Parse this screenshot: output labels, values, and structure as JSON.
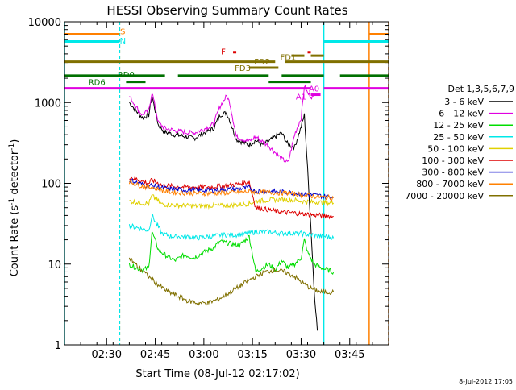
{
  "chart_data": {
    "type": "line",
    "title": "HESSI Observing Summary Count Rates",
    "xlabel": "Start Time (08-Jul-12 02:17:02)",
    "ylabel": "Count Rate (s",
    "ylabel_sup1": "-1",
    "ylabel_mid": " detector",
    "ylabel_sup2": "-1",
    "ylabel_end": ")",
    "y_scale": "log",
    "ylim": [
      1,
      10000
    ],
    "xlim": [
      "02:17",
      "03:57"
    ],
    "x_ticks": [
      "02:30",
      "02:45",
      "03:00",
      "03:15",
      "03:30",
      "03:45"
    ],
    "y_ticks": [
      "1",
      "10",
      "100",
      "1000",
      "10000"
    ],
    "timestamp": "8-Jul-2012 17:05",
    "legend": {
      "title": "Det 1,3,5,6,7,9",
      "position": "right",
      "entries": [
        {
          "label": "3 - 6 keV",
          "color": "#000000"
        },
        {
          "label": "6 - 12 keV",
          "color": "#e000e0"
        },
        {
          "label": "12 - 25 keV",
          "color": "#00dd00"
        },
        {
          "label": "25 - 50 keV",
          "color": "#00e8e8"
        },
        {
          "label": "50 - 100 keV",
          "color": "#e0d000"
        },
        {
          "label": "100 - 300 keV",
          "color": "#dd0000"
        },
        {
          "label": "300 - 800 keV",
          "color": "#0000cc"
        },
        {
          "label": "800 - 7000 keV",
          "color": "#ff8000"
        },
        {
          "label": "7000 - 20000 keV",
          "color": "#807000"
        }
      ]
    },
    "series": [
      {
        "name": "3 - 6 keV",
        "color": "#000000",
        "x": [
          "02:37",
          "02:39",
          "02:41",
          "02:43",
          "02:44",
          "02:46",
          "02:48",
          "02:51",
          "02:54",
          "02:57",
          "03:00",
          "03:03",
          "03:05",
          "03:07",
          "03:08",
          "03:10",
          "03:12",
          "03:14",
          "03:16",
          "03:18",
          "03:20",
          "03:22",
          "03:24",
          "03:26",
          "03:28",
          "03:30",
          "03:31",
          "03:32",
          "03:33",
          "03:34",
          "03:35"
        ],
        "y": [
          1000,
          800,
          650,
          700,
          1200,
          520,
          430,
          400,
          380,
          360,
          420,
          480,
          700,
          750,
          600,
          350,
          320,
          300,
          340,
          300,
          330,
          380,
          420,
          300,
          280,
          500,
          700,
          150,
          30,
          5,
          1.5
        ]
      },
      {
        "name": "6 - 12 keV",
        "color": "#e000e0",
        "x": [
          "02:37",
          "02:39",
          "02:41",
          "02:43",
          "02:44",
          "02:46",
          "02:48",
          "02:51",
          "02:54",
          "02:57",
          "03:00",
          "03:03",
          "03:05",
          "03:07",
          "03:08",
          "03:10",
          "03:12",
          "03:14",
          "03:16",
          "03:18",
          "03:20",
          "03:22",
          "03:24",
          "03:26",
          "03:28",
          "03:30",
          "03:31",
          "03:32",
          "03:33",
          "03:34"
        ],
        "y": [
          1200,
          900,
          700,
          800,
          1350,
          560,
          480,
          450,
          430,
          420,
          470,
          540,
          900,
          1200,
          1000,
          380,
          350,
          330,
          380,
          330,
          290,
          240,
          200,
          180,
          400,
          650,
          1600,
          1300,
          1200,
          1150
        ]
      },
      {
        "name": "12 - 25 keV",
        "color": "#00dd00",
        "x": [
          "02:37",
          "02:39",
          "02:41",
          "02:43",
          "02:44",
          "02:46",
          "02:48",
          "02:51",
          "02:54",
          "02:57",
          "03:00",
          "03:03",
          "03:05",
          "03:08",
          "03:11",
          "03:14",
          "03:16",
          "03:18",
          "03:20",
          "03:22",
          "03:24",
          "03:26",
          "03:28",
          "03:30",
          "03:31",
          "03:32",
          "03:34",
          "03:36",
          "03:38",
          "03:40"
        ],
        "y": [
          10,
          9,
          8.5,
          9,
          25,
          15,
          13,
          11,
          13,
          12,
          14,
          16,
          19,
          18,
          17,
          22,
          8,
          9,
          10,
          8.5,
          11,
          9,
          10,
          12,
          20,
          14,
          10,
          9,
          8.5,
          8
        ]
      },
      {
        "name": "25 - 50 keV",
        "color": "#00e8e8",
        "x": [
          "02:37",
          "02:40",
          "02:43",
          "02:44",
          "02:47",
          "02:50",
          "02:54",
          "02:58",
          "03:02",
          "03:06",
          "03:10",
          "03:14",
          "03:16",
          "03:20",
          "03:24",
          "03:28",
          "03:30",
          "03:32",
          "03:34",
          "03:36",
          "03:38",
          "03:40"
        ],
        "y": [
          30,
          28,
          26,
          40,
          24,
          22,
          22,
          21,
          22,
          23,
          23,
          24,
          25,
          25,
          24,
          24,
          24,
          23,
          23,
          22,
          22,
          21
        ]
      },
      {
        "name": "50 - 100 keV",
        "color": "#e0d000",
        "x": [
          "02:37",
          "02:40",
          "02:43",
          "02:44",
          "02:47",
          "02:50",
          "02:54",
          "02:58",
          "03:02",
          "03:06",
          "03:10",
          "03:14",
          "03:16",
          "03:20",
          "03:24",
          "03:28",
          "03:30",
          "03:33",
          "03:36",
          "03:40"
        ],
        "y": [
          60,
          58,
          56,
          70,
          55,
          54,
          53,
          52,
          53,
          53,
          54,
          56,
          60,
          62,
          63,
          62,
          60,
          59,
          58,
          57
        ]
      },
      {
        "name": "100 - 300 keV",
        "color": "#dd0000",
        "x": [
          "02:37",
          "02:40",
          "02:43",
          "02:44",
          "02:47",
          "02:50",
          "02:54",
          "02:58",
          "03:02",
          "03:06",
          "03:10",
          "03:14",
          "03:16",
          "03:20",
          "03:24",
          "03:28",
          "03:30",
          "03:33",
          "03:36",
          "03:40"
        ],
        "y": [
          120,
          110,
          100,
          110,
          95,
          92,
          90,
          90,
          90,
          93,
          97,
          105,
          50,
          47,
          44,
          43,
          42,
          41,
          40,
          39
        ]
      },
      {
        "name": "300 - 800 keV",
        "color": "#0000cc",
        "x": [
          "02:37",
          "02:40",
          "02:43",
          "02:44",
          "02:47",
          "02:50",
          "02:54",
          "02:58",
          "03:02",
          "03:06",
          "03:10",
          "03:14",
          "03:16",
          "03:20",
          "03:24",
          "03:28",
          "03:30",
          "03:33",
          "03:36",
          "03:40"
        ],
        "y": [
          110,
          100,
          92,
          95,
          88,
          85,
          83,
          82,
          82,
          84,
          85,
          88,
          80,
          80,
          78,
          76,
          74,
          72,
          70,
          68
        ]
      },
      {
        "name": "800 - 7000 keV",
        "color": "#ff8000",
        "x": [
          "02:37",
          "02:40",
          "02:43",
          "02:44",
          "02:47",
          "02:50",
          "02:54",
          "02:58",
          "03:02",
          "03:06",
          "03:10",
          "03:14",
          "03:16",
          "03:20",
          "03:24",
          "03:28",
          "03:30",
          "03:33",
          "03:36",
          "03:40"
        ],
        "y": [
          105,
          95,
          88,
          90,
          82,
          78,
          76,
          75,
          75,
          76,
          77,
          79,
          78,
          77,
          76,
          74,
          72,
          70,
          68,
          66
        ]
      },
      {
        "name": "7000 - 20000 keV",
        "color": "#807000",
        "x": [
          "02:37",
          "02:40",
          "02:43",
          "02:46",
          "02:49",
          "02:52",
          "02:55",
          "02:58",
          "03:01",
          "03:04",
          "03:07",
          "03:10",
          "03:13",
          "03:16",
          "03:19",
          "03:22",
          "03:25",
          "03:28",
          "03:30",
          "03:33",
          "03:36",
          "03:40"
        ],
        "y": [
          12,
          9,
          7,
          5.5,
          4.5,
          4,
          3.5,
          3.3,
          3.3,
          3.6,
          4.2,
          5,
          6,
          7,
          8,
          8.5,
          8,
          7,
          6,
          5,
          4.5,
          4.5
        ]
      }
    ],
    "flags": [
      {
        "label": "S",
        "color": "#ff8000",
        "y": 7000,
        "segments": [
          [
            "02:17",
            "02:34"
          ],
          [
            "03:51",
            "03:57"
          ]
        ]
      },
      {
        "label": "N",
        "color": "#00e8e8",
        "y": 5700,
        "segments": [
          [
            "02:17",
            "02:34"
          ],
          [
            "03:37",
            "03:57"
          ]
        ]
      },
      {
        "label": "F",
        "color": "#dd0000",
        "y": 4200,
        "segments": [
          [
            "03:09",
            "03:10"
          ],
          [
            "03:32",
            "03:33"
          ]
        ]
      },
      {
        "label": "FD1",
        "color": "#807000",
        "y": 3800,
        "segments": [
          [
            "03:27",
            "03:31"
          ],
          [
            "03:33",
            "03:37"
          ]
        ]
      },
      {
        "label": "FD2",
        "color": "#807000",
        "y": 3200,
        "segments": [
          [
            "02:17",
            "03:22"
          ],
          [
            "03:25",
            "03:57"
          ]
        ]
      },
      {
        "label": "FD3",
        "color": "#807000",
        "y": 2700,
        "segments": [
          [
            "03:14",
            "03:23"
          ]
        ]
      },
      {
        "label": "RD0",
        "color": "#007000",
        "y": 2150,
        "segments": [
          [
            "02:17",
            "02:48"
          ],
          [
            "02:52",
            "03:20"
          ],
          [
            "03:24",
            "03:37"
          ],
          [
            "03:42",
            "03:57"
          ]
        ]
      },
      {
        "label": "RD6",
        "color": "#007000",
        "y": 1800,
        "segments": [
          [
            "02:36",
            "02:42"
          ],
          [
            "03:20",
            "03:33"
          ]
        ]
      },
      {
        "label": "A1",
        "color": "#e000e0",
        "y": 1500,
        "segments": [
          [
            "02:17",
            "03:33"
          ],
          [
            "03:37",
            "03:57"
          ]
        ]
      },
      {
        "label": "A0",
        "color": "#e000e0",
        "y": 1250,
        "segments": [
          [
            "03:33",
            "03:36"
          ]
        ]
      }
    ],
    "vertical_markers": [
      {
        "x": "02:34",
        "color": "#ff8000",
        "dashed": true
      },
      {
        "x": "02:34",
        "color": "#00e8e8",
        "dashed": true
      },
      {
        "x": "03:37",
        "color": "#00e8e8",
        "dashed": false
      },
      {
        "x": "03:51",
        "color": "#ff8000",
        "dashed": false
      },
      {
        "x": "03:57",
        "color": "#ff8000",
        "dashed": true
      },
      {
        "x": "02:17",
        "color": "#00e8e8",
        "dashed": false
      }
    ]
  }
}
